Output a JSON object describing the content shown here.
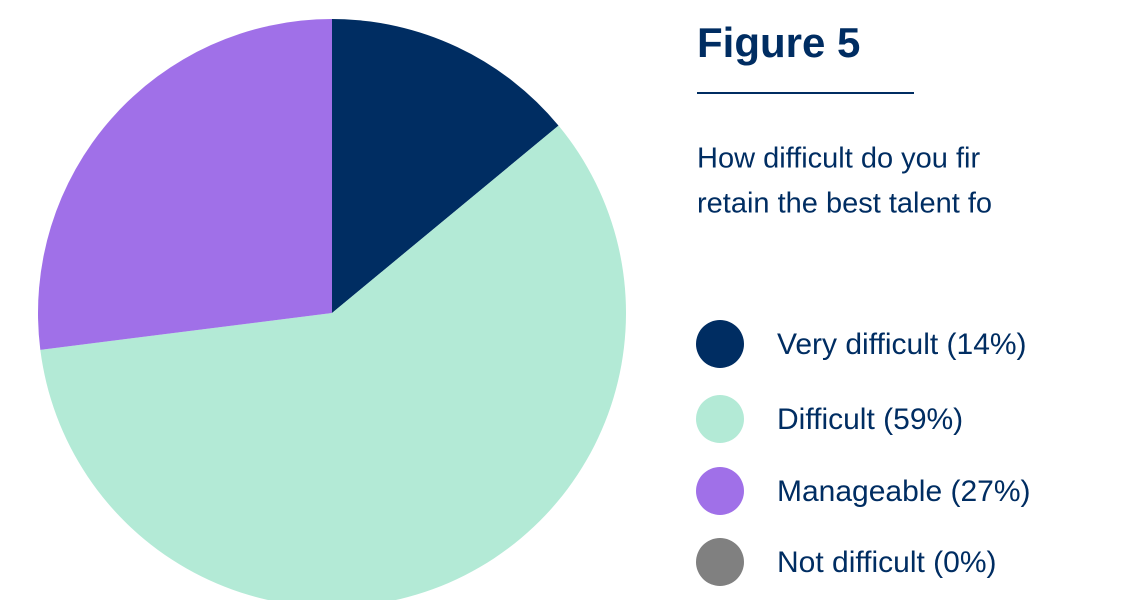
{
  "chart_data": {
    "type": "pie",
    "title": "Figure 5",
    "subtitle": [
      "How difficult do you fir",
      "retain the best talent fo"
    ],
    "categories": [
      "Very difficult (14%)",
      "Difficult (59%)",
      "Manageable (27%)",
      "Not difficult (0%)"
    ],
    "values": [
      14,
      59,
      27,
      0
    ],
    "colors": [
      "#002d62",
      "#b3ead6",
      "#a070e8",
      "#808080"
    ]
  }
}
